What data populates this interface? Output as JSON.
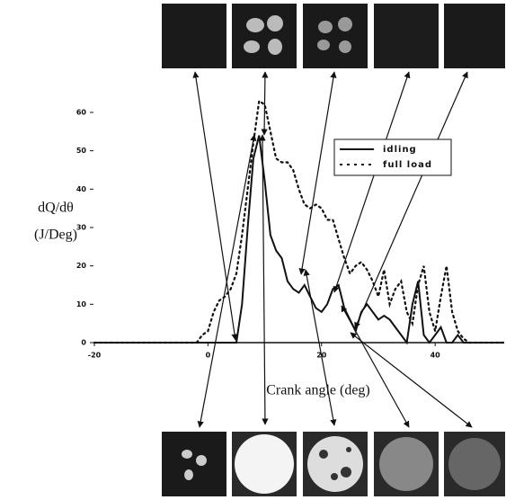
{
  "chart_data": {
    "type": "line",
    "ylabel": [
      "dQ/dθ",
      "(J/Deg)"
    ],
    "xlabel": "Crank angle (deg)",
    "x": [
      -20,
      -2,
      -1,
      0,
      1,
      2,
      3,
      4,
      5,
      6,
      7,
      8,
      9,
      10,
      11,
      12,
      13,
      14,
      15,
      16,
      17,
      18,
      19,
      20,
      21,
      22,
      23,
      24,
      25,
      26,
      27,
      28,
      29,
      30,
      31,
      32,
      33,
      34,
      35,
      36,
      37,
      38,
      39,
      40,
      41,
      42,
      43,
      44,
      45,
      46,
      52
    ],
    "series": [
      {
        "name": "idling",
        "color": "#111111",
        "dash": "solid",
        "values": [
          0,
          0,
          0,
          0,
          0,
          0,
          0,
          0,
          0,
          10,
          30,
          48,
          54,
          42,
          28,
          24,
          22,
          16,
          14,
          13,
          15,
          12,
          9,
          8,
          10,
          14,
          15,
          9,
          6,
          3,
          8,
          10,
          8,
          6,
          7,
          6,
          4,
          2,
          0,
          10,
          16,
          2,
          0,
          2,
          4,
          0,
          0,
          2,
          0,
          0,
          0
        ]
      },
      {
        "name": "full load",
        "color": "#111111",
        "dash": "dotted",
        "values": [
          0,
          0,
          2,
          3,
          8,
          11,
          12,
          14,
          18,
          28,
          40,
          52,
          63,
          62,
          55,
          48,
          47,
          47,
          45,
          40,
          36,
          35,
          36,
          35,
          32,
          32,
          27,
          22,
          18,
          20,
          21,
          19,
          16,
          12,
          19,
          10,
          14,
          16,
          8,
          5,
          15,
          20,
          8,
          3,
          12,
          20,
          8,
          3,
          1,
          0,
          0
        ]
      }
    ],
    "xlim": [
      -20,
      52
    ],
    "ylim": [
      0,
      65
    ],
    "xticks": [
      -20,
      0,
      20,
      40
    ],
    "yticks": [
      0,
      10,
      20,
      30,
      40,
      50,
      60
    ],
    "legend": "upper right"
  }
}
